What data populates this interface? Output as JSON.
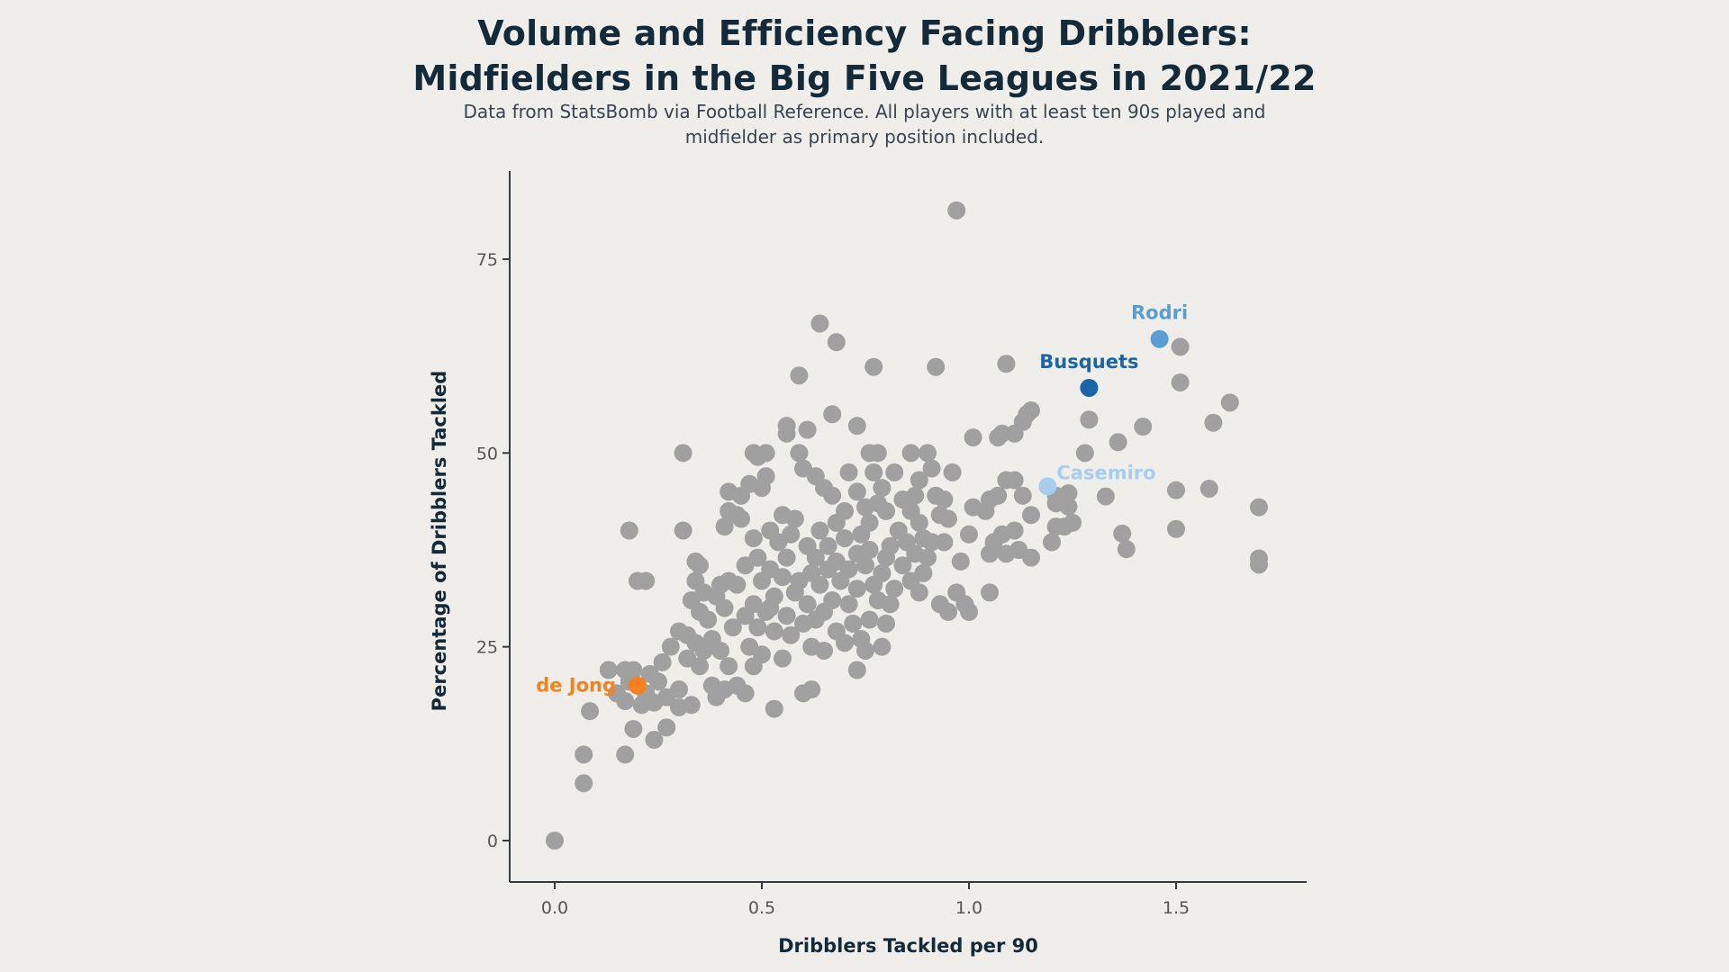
{
  "title_line1": "Volume and Efficiency Facing Dribblers:",
  "title_line2": "Midfielders in the Big Five Leagues in 2021/22",
  "subtitle_line1": "Data from StatsBomb via Football Reference. All players with at least ten 90s played and",
  "subtitle_line2": "midfielder as primary position included.",
  "colors": {
    "background": "#efeeeb",
    "point": "#a0a0a0",
    "axis": "#333c44",
    "title": "#152a38"
  },
  "chart_data": {
    "type": "scatter",
    "title": "Volume and Efficiency Facing Dribblers: Midfielders in the Big Five Leagues in 2021/22",
    "subtitle": "Data from StatsBomb via Football Reference. All players with at least ten 90s played and midfielder as primary position included.",
    "xlabel": "Dribblers Tackled per 90",
    "ylabel": "Percentage of Dribblers Tackled",
    "xlim": [
      -0.1,
      1.82
    ],
    "ylim": [
      -5,
      87
    ],
    "xticks": [
      0.0,
      0.5,
      1.0,
      1.5
    ],
    "xtick_labels": [
      "0.0",
      "0.5",
      "1.0",
      "1.5"
    ],
    "yticks": [
      0,
      25,
      50,
      75
    ],
    "ytick_labels": [
      "0",
      "25",
      "50",
      "75"
    ],
    "grid": false,
    "highlights": [
      {
        "name": "Rodri",
        "x": 1.46,
        "y": 64.7,
        "color": "#5a9fd4",
        "label_pos": "above"
      },
      {
        "name": "Busquets",
        "x": 1.29,
        "y": 58.4,
        "color": "#1a65a8",
        "label_pos": "above"
      },
      {
        "name": "Casemiro",
        "x": 1.19,
        "y": 45.7,
        "color": "#a8cdee",
        "label_pos": "right"
      },
      {
        "name": "de Jong",
        "x": 0.2,
        "y": 20.0,
        "color": "#f5821f",
        "label_pos": "left"
      }
    ],
    "points": [
      [
        0.0,
        0.0
      ],
      [
        0.07,
        7.4
      ],
      [
        0.07,
        11.1
      ],
      [
        0.17,
        11.1
      ],
      [
        0.085,
        16.7
      ],
      [
        0.19,
        14.4
      ],
      [
        0.24,
        13.0
      ],
      [
        0.27,
        14.6
      ],
      [
        0.13,
        22.0
      ],
      [
        0.17,
        22.0
      ],
      [
        0.19,
        22.0
      ],
      [
        0.15,
        19.0
      ],
      [
        0.17,
        18.0
      ],
      [
        0.21,
        17.5
      ],
      [
        0.24,
        17.8
      ],
      [
        0.25,
        20.5
      ],
      [
        0.22,
        19.0
      ],
      [
        0.18,
        20.5
      ],
      [
        0.23,
        21.5
      ],
      [
        0.27,
        18.5
      ],
      [
        0.3,
        17.2
      ],
      [
        0.33,
        17.5
      ],
      [
        0.3,
        19.5
      ],
      [
        0.26,
        23.0
      ],
      [
        0.28,
        25.0
      ],
      [
        0.3,
        27.0
      ],
      [
        0.32,
        26.5
      ],
      [
        0.34,
        25.5
      ],
      [
        0.32,
        23.5
      ],
      [
        0.35,
        22.5
      ],
      [
        0.36,
        24.5
      ],
      [
        0.38,
        26.0
      ],
      [
        0.37,
        28.5
      ],
      [
        0.35,
        29.5
      ],
      [
        0.33,
        31.0
      ],
      [
        0.36,
        32.0
      ],
      [
        0.39,
        31.5
      ],
      [
        0.34,
        33.5
      ],
      [
        0.35,
        35.5
      ],
      [
        0.4,
        33.0
      ],
      [
        0.42,
        33.5
      ],
      [
        0.44,
        33.0
      ],
      [
        0.41,
        30.0
      ],
      [
        0.43,
        27.5
      ],
      [
        0.4,
        24.5
      ],
      [
        0.42,
        22.5
      ],
      [
        0.44,
        20.0
      ],
      [
        0.41,
        19.5
      ],
      [
        0.38,
        20.0
      ],
      [
        0.39,
        18.5
      ],
      [
        0.46,
        19.0
      ],
      [
        0.48,
        22.5
      ],
      [
        0.5,
        24.0
      ],
      [
        0.47,
        25.0
      ],
      [
        0.49,
        27.5
      ],
      [
        0.46,
        29.0
      ],
      [
        0.48,
        30.5
      ],
      [
        0.51,
        29.5
      ],
      [
        0.53,
        31.5
      ],
      [
        0.5,
        33.5
      ],
      [
        0.52,
        35.0
      ],
      [
        0.49,
        36.5
      ],
      [
        0.46,
        35.5
      ],
      [
        0.55,
        34.0
      ],
      [
        0.56,
        36.5
      ],
      [
        0.54,
        38.5
      ],
      [
        0.57,
        39.5
      ],
      [
        0.58,
        41.5
      ],
      [
        0.55,
        42.0
      ],
      [
        0.52,
        40.0
      ],
      [
        0.48,
        39.0
      ],
      [
        0.45,
        41.5
      ],
      [
        0.42,
        42.5
      ],
      [
        0.42,
        45.0
      ],
      [
        0.45,
        44.5
      ],
      [
        0.47,
        46.0
      ],
      [
        0.5,
        45.5
      ],
      [
        0.51,
        47.0
      ],
      [
        0.49,
        49.5
      ],
      [
        0.51,
        50.0
      ],
      [
        0.48,
        50.0
      ],
      [
        0.41,
        40.5
      ],
      [
        0.44,
        42.0
      ],
      [
        0.31,
        50.0
      ],
      [
        0.18,
        40.0
      ],
      [
        0.31,
        40.0
      ],
      [
        0.2,
        33.5
      ],
      [
        0.22,
        33.5
      ],
      [
        0.34,
        36.0
      ],
      [
        0.53,
        17.0
      ],
      [
        0.6,
        19.0
      ],
      [
        0.62,
        19.5
      ],
      [
        0.55,
        23.5
      ],
      [
        0.57,
        26.5
      ],
      [
        0.6,
        28.0
      ],
      [
        0.62,
        25.0
      ],
      [
        0.65,
        24.5
      ],
      [
        0.63,
        28.5
      ],
      [
        0.61,
        30.5
      ],
      [
        0.58,
        32.0
      ],
      [
        0.56,
        29.0
      ],
      [
        0.53,
        27.0
      ],
      [
        0.52,
        30.0
      ],
      [
        0.59,
        33.5
      ],
      [
        0.62,
        34.5
      ],
      [
        0.64,
        33.0
      ],
      [
        0.66,
        35.0
      ],
      [
        0.63,
        36.5
      ],
      [
        0.61,
        38.0
      ],
      [
        0.64,
        40.0
      ],
      [
        0.66,
        38.0
      ],
      [
        0.68,
        36.0
      ],
      [
        0.69,
        33.5
      ],
      [
        0.67,
        31.0
      ],
      [
        0.65,
        29.5
      ],
      [
        0.68,
        27.0
      ],
      [
        0.7,
        25.5
      ],
      [
        0.72,
        28.0
      ],
      [
        0.71,
        30.5
      ],
      [
        0.73,
        32.5
      ],
      [
        0.71,
        35.0
      ],
      [
        0.73,
        37.0
      ],
      [
        0.7,
        39.0
      ],
      [
        0.68,
        41.0
      ],
      [
        0.7,
        42.5
      ],
      [
        0.67,
        44.5
      ],
      [
        0.65,
        45.5
      ],
      [
        0.63,
        47.0
      ],
      [
        0.6,
        48.0
      ],
      [
        0.59,
        50.0
      ],
      [
        0.61,
        53.0
      ],
      [
        0.56,
        53.5
      ],
      [
        0.56,
        52.5
      ],
      [
        0.59,
        60.0
      ],
      [
        0.64,
        66.7
      ],
      [
        0.68,
        64.3
      ],
      [
        0.77,
        61.1
      ],
      [
        0.92,
        61.1
      ],
      [
        1.09,
        61.5
      ],
      [
        0.97,
        81.3
      ],
      [
        0.67,
        55.0
      ],
      [
        0.73,
        53.5
      ],
      [
        0.71,
        47.5
      ],
      [
        0.73,
        45.0
      ],
      [
        0.75,
        43.0
      ],
      [
        0.76,
        41.0
      ],
      [
        0.74,
        39.5
      ],
      [
        0.76,
        37.5
      ],
      [
        0.75,
        35.5
      ],
      [
        0.77,
        33.0
      ],
      [
        0.79,
        34.5
      ],
      [
        0.78,
        31.0
      ],
      [
        0.76,
        28.5
      ],
      [
        0.74,
        26.0
      ],
      [
        0.75,
        24.5
      ],
      [
        0.73,
        22.0
      ],
      [
        0.79,
        25.0
      ],
      [
        0.8,
        28.0
      ],
      [
        0.81,
        30.5
      ],
      [
        0.82,
        32.5
      ],
      [
        0.8,
        36.5
      ],
      [
        0.81,
        38.0
      ],
      [
        0.83,
        40.0
      ],
      [
        0.8,
        42.5
      ],
      [
        0.78,
        43.5
      ],
      [
        0.79,
        45.5
      ],
      [
        0.82,
        47.5
      ],
      [
        0.77,
        47.5
      ],
      [
        0.76,
        50.0
      ],
      [
        0.78,
        50.0
      ],
      [
        0.84,
        44.0
      ],
      [
        0.86,
        42.5
      ],
      [
        0.85,
        38.5
      ],
      [
        0.87,
        37.0
      ],
      [
        0.84,
        35.5
      ],
      [
        0.86,
        33.5
      ],
      [
        0.88,
        32.0
      ],
      [
        0.89,
        34.5
      ],
      [
        0.9,
        36.5
      ],
      [
        0.89,
        39.0
      ],
      [
        0.91,
        38.5
      ],
      [
        0.88,
        41.0
      ],
      [
        0.87,
        44.5
      ],
      [
        0.88,
        46.5
      ],
      [
        0.86,
        50.0
      ],
      [
        0.9,
        50.0
      ],
      [
        0.91,
        48.0
      ],
      [
        0.92,
        44.5
      ],
      [
        0.93,
        42.0
      ],
      [
        0.95,
        41.5
      ],
      [
        0.94,
        44.0
      ],
      [
        0.96,
        47.5
      ],
      [
        0.94,
        38.5
      ],
      [
        0.93,
        30.5
      ],
      [
        0.95,
        29.5
      ],
      [
        0.97,
        32.0
      ],
      [
        0.99,
        30.5
      ],
      [
        1.0,
        29.5
      ],
      [
        0.98,
        36.0
      ],
      [
        1.0,
        39.5
      ],
      [
        1.01,
        43.0
      ],
      [
        1.05,
        44.0
      ],
      [
        1.04,
        42.5
      ],
      [
        1.07,
        44.5
      ],
      [
        1.09,
        46.5
      ],
      [
        1.11,
        46.5
      ],
      [
        1.13,
        44.5
      ],
      [
        1.15,
        42.0
      ],
      [
        1.08,
        39.5
      ],
      [
        1.06,
        38.5
      ],
      [
        1.05,
        37.0
      ],
      [
        1.09,
        37.0
      ],
      [
        1.11,
        40.0
      ],
      [
        1.12,
        37.5
      ],
      [
        1.15,
        36.5
      ],
      [
        1.05,
        32.0
      ],
      [
        1.01,
        52.0
      ],
      [
        1.07,
        52.0
      ],
      [
        1.08,
        52.5
      ],
      [
        1.11,
        52.5
      ],
      [
        1.13,
        54.0
      ],
      [
        1.14,
        55.0
      ],
      [
        1.15,
        55.5
      ],
      [
        1.21,
        44.5
      ],
      [
        1.21,
        43.5
      ],
      [
        1.21,
        40.5
      ],
      [
        1.2,
        38.5
      ],
      [
        1.23,
        40.5
      ],
      [
        1.25,
        41.0
      ],
      [
        1.24,
        44.8
      ],
      [
        1.24,
        43.1
      ],
      [
        1.28,
        50.0
      ],
      [
        1.29,
        54.3
      ],
      [
        1.36,
        51.4
      ],
      [
        1.42,
        53.4
      ],
      [
        1.51,
        59.1
      ],
      [
        1.51,
        63.7
      ],
      [
        1.59,
        53.9
      ],
      [
        1.63,
        56.5
      ],
      [
        1.33,
        44.4
      ],
      [
        1.37,
        39.6
      ],
      [
        1.38,
        37.6
      ],
      [
        1.5,
        45.2
      ],
      [
        1.58,
        45.4
      ],
      [
        1.5,
        40.2
      ],
      [
        1.7,
        43.0
      ],
      [
        1.7,
        36.4
      ],
      [
        1.7,
        35.6
      ]
    ]
  }
}
